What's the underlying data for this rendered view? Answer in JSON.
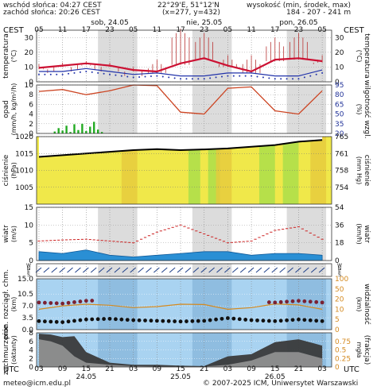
{
  "header": {
    "sunrise": "wschód słońca: 04:27 CEST",
    "sunset": "zachód słońca: 20:26 CEST",
    "coords": "22°29'E, 51°12'N",
    "grid": "(x=277, y=432)",
    "elev_label": "wysokość (min, środek, max)",
    "elev_values": "184 - 207 - 241 m"
  },
  "top_axis": {
    "tz": "CEST",
    "hours": [
      "05",
      "11",
      "17",
      "23",
      "05",
      "11",
      "17",
      "23",
      "05",
      "11",
      "17",
      "23",
      "05"
    ],
    "days": [
      "sob, 24.05",
      "nie, 25.05",
      "pon, 26.05"
    ]
  },
  "bottom_axis": {
    "tz": "UTC",
    "hours": [
      "03",
      "09",
      "15",
      "21",
      "03",
      "09",
      "15",
      "21",
      "03",
      "09",
      "15",
      "21",
      "03"
    ],
    "days": [
      "24.05",
      "25.05",
      "26.05"
    ]
  },
  "footer": {
    "email": "meteo@icm.edu.pl",
    "copyright": "© 2007-2025 ICM, Uniwersytet Warszawski"
  },
  "panels": {
    "temperature": {
      "left_label": "temperatura",
      "left_unit": "(°C)",
      "right_label": "temperatura",
      "right_unit": "(°C)"
    },
    "precip": {
      "left_label": "opad",
      "left_unit": "(mm/h, kg/m²/h)",
      "right_label": "wilgotność wzgl.",
      "right_unit": "(%)"
    },
    "pressure": {
      "left_label": "ciśnienie",
      "left_unit": "(hPa)",
      "right_label": "ciśnienie",
      "right_unit": "(mm Hg)"
    },
    "wind": {
      "left_label": "wiatr",
      "left_unit": "(m/s)",
      "right_label": "wiatr",
      "right_unit": "(km/h)"
    },
    "winddir": {
      "left_label": "W N E S",
      "right_label": "W N E S"
    },
    "visibility": {
      "left_label": "pion. rozciągł. chm.",
      "left_unit": "(km)",
      "right_label": "widzialność",
      "right_unit": "(km)"
    },
    "cloud": {
      "left_label": "zachmurzenie",
      "left_unit": "(oktanty)",
      "right_label": "(frakcja)",
      "right_unit": "mgła"
    }
  },
  "chart_data": [
    {
      "type": "line",
      "name": "temperature",
      "x_unit": "hours since 24.05 03 UTC",
      "ylim": [
        0,
        35
      ],
      "yticks": [
        0,
        10,
        20,
        30
      ],
      "right_ticks": [
        0,
        10,
        20,
        30
      ],
      "series": [
        {
          "name": "temperature",
          "color": "#cc1133",
          "x": [
            0,
            6,
            12,
            18,
            24,
            30,
            36,
            42,
            48,
            54,
            60,
            66,
            72
          ],
          "values": [
            9.5,
            11,
            12.5,
            11,
            8,
            7,
            12.5,
            16,
            11,
            7,
            15,
            16,
            14
          ]
        },
        {
          "name": "dew point",
          "color": "#2233aa",
          "x": [
            0,
            6,
            12,
            18,
            24,
            30,
            36,
            42,
            48,
            54,
            60,
            66,
            72
          ],
          "values": [
            7,
            7,
            9,
            7,
            5,
            6,
            4,
            4,
            6,
            6,
            4,
            4,
            8
          ]
        }
      ],
      "spread_max": [
        12,
        13,
        14,
        13,
        10,
        15,
        36,
        33,
        18,
        18,
        30,
        33,
        18
      ]
    },
    {
      "type": "bar",
      "name": "precipitation_humidity",
      "ylim": [
        0,
        10
      ],
      "yticks": [
        0,
        2,
        4,
        6,
        8,
        10
      ],
      "right_ticks": [
        20,
        35,
        50,
        65,
        80,
        95
      ],
      "precip": {
        "x": [
          4,
          5,
          6,
          7,
          8,
          9,
          10,
          11,
          12,
          13,
          14,
          15,
          16
        ],
        "values": [
          0.4,
          1.1,
          0.6,
          1.6,
          0.3,
          1.9,
          0.7,
          2.0,
          0.5,
          1.4,
          2.4,
          0.8,
          0.3
        ]
      },
      "humidity": {
        "color": "#cc4422",
        "x": [
          0,
          6,
          12,
          18,
          24,
          30,
          36,
          42,
          48,
          54,
          60,
          66,
          72
        ],
        "values": [
          85,
          88,
          80,
          86,
          95,
          94,
          53,
          50,
          90,
          92,
          55,
          50,
          86
        ]
      }
    },
    {
      "type": "area",
      "name": "pressure",
      "ylim": [
        1000,
        1020
      ],
      "yticks": [
        1005,
        1010,
        1015,
        1020
      ],
      "right_ticks": [
        754,
        758,
        761,
        765
      ],
      "series": [
        {
          "name": "pressure",
          "x": [
            0,
            6,
            12,
            18,
            24,
            30,
            36,
            42,
            48,
            54,
            60,
            66,
            72
          ],
          "values": [
            1014.0,
            1014.5,
            1015.0,
            1015.5,
            1016.0,
            1016.3,
            1016.0,
            1016.2,
            1016.5,
            1017.0,
            1017.5,
            1018.5,
            1019.0
          ]
        }
      ]
    },
    {
      "type": "area",
      "name": "wind",
      "ylim": [
        0,
        15
      ],
      "yticks": [
        0,
        5,
        10,
        15
      ],
      "right_ticks": [
        0,
        18,
        36,
        54
      ],
      "series": [
        {
          "name": "wind speed",
          "color": "#2a8fd4",
          "x": [
            0,
            6,
            12,
            18,
            24,
            30,
            36,
            42,
            48,
            54,
            60,
            66,
            72
          ],
          "values": [
            2.5,
            2.0,
            3.0,
            1.5,
            1.0,
            1.5,
            2.0,
            2.5,
            2.5,
            1.5,
            2.0,
            2.0,
            1.5
          ]
        },
        {
          "name": "gusts",
          "color": "#cc2222",
          "x": [
            0,
            6,
            12,
            18,
            24,
            30,
            36,
            42,
            48,
            54,
            60,
            66,
            72
          ],
          "values": [
            5.5,
            5.8,
            6.0,
            5.5,
            5.0,
            8.0,
            10.0,
            7.5,
            5.0,
            5.5,
            8.5,
            9.5,
            6.0
          ]
        }
      ]
    },
    {
      "type": "line",
      "name": "visibility_cloudbase",
      "ylim": [
        0,
        15
      ],
      "yticks": [
        0.0,
        3.5,
        7.0,
        10.5,
        15.0
      ],
      "right_ticks": [
        0,
        5,
        10,
        20,
        50,
        100
      ],
      "series": [
        {
          "name": "visibility",
          "color": "#d48a20",
          "x": [
            0,
            6,
            12,
            18,
            24,
            30,
            36,
            42,
            48,
            54,
            60,
            66,
            72
          ],
          "values": [
            6,
            7,
            7.5,
            7.2,
            6.5,
            6.8,
            7.5,
            7.4,
            6.0,
            6.5,
            7.6,
            7.3,
            6.0
          ]
        },
        {
          "name": "cloud base",
          "color": "#111111",
          "x": [
            0,
            6,
            12,
            18,
            24,
            30,
            36,
            42,
            48,
            54,
            60,
            66,
            72
          ],
          "values": [
            2.5,
            2.2,
            3.0,
            3.2,
            2.8,
            2.6,
            2.4,
            2.6,
            3.4,
            2.8,
            2.5,
            3.0,
            2.5
          ]
        }
      ]
    },
    {
      "type": "area",
      "name": "cloud_cover",
      "ylim": [
        0,
        8
      ],
      "yticks": [
        0,
        2,
        4,
        6,
        8
      ],
      "right_ticks": [
        0,
        0.25,
        0.5,
        0.75
      ],
      "series": [
        {
          "name": "total cloud",
          "color": "#3a3a3a",
          "x": [
            0,
            3,
            6,
            9,
            12,
            18,
            24,
            30,
            36,
            42,
            48,
            54,
            60,
            66,
            70,
            72
          ],
          "values": [
            7.8,
            7.6,
            7.0,
            7.2,
            3.5,
            1.0,
            0.5,
            0.5,
            0.3,
            0.2,
            2.5,
            3.0,
            5.8,
            6.5,
            5.5,
            5.0
          ]
        },
        {
          "name": "low cloud",
          "color": "#999999",
          "x": [
            0,
            3,
            6,
            9,
            12,
            18,
            24,
            30,
            36,
            42,
            48,
            54,
            60,
            66,
            70,
            72
          ],
          "values": [
            6.5,
            6.0,
            5.0,
            2.5,
            1.0,
            0.5,
            0.2,
            0.1,
            0.1,
            0.1,
            0.5,
            1.5,
            3.5,
            3.5,
            2.5,
            2.0
          ]
        }
      ]
    }
  ]
}
